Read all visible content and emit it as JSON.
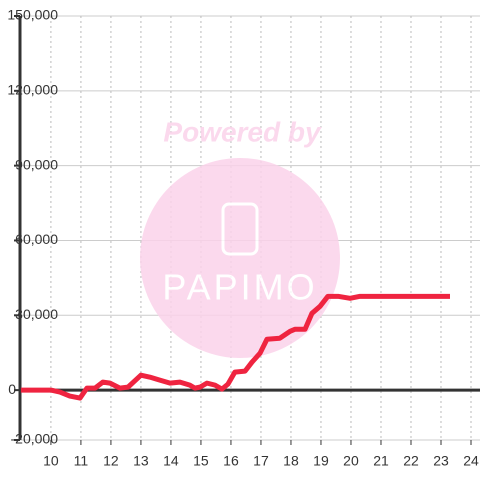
{
  "chart_data": {
    "type": "line",
    "annotations": [
      "Powered by",
      "PAPIMO"
    ],
    "x": [
      9,
      10,
      10.3,
      10.63,
      10.97,
      11.2,
      11.47,
      11.73,
      11.97,
      12.3,
      12.57,
      13,
      13.3,
      13.63,
      13.97,
      14.3,
      14.63,
      14.8,
      14.97,
      15.2,
      15.47,
      15.7,
      15.9,
      16.13,
      16.47,
      16.7,
      16.97,
      17.2,
      17.63,
      17.97,
      18.13,
      18.47,
      18.7,
      18.97,
      19.23,
      19.57,
      19.97,
      20.3,
      23.3
    ],
    "series": [
      {
        "color": "#ef2440",
        "values": [
          0,
          0,
          -800,
          -2400,
          -3200,
          800,
          800,
          3200,
          2800,
          800,
          1200,
          6000,
          5200,
          4000,
          2800,
          3200,
          2000,
          800,
          1200,
          2800,
          2000,
          400,
          2400,
          7200,
          7600,
          11200,
          14800,
          20400,
          20800,
          23600,
          24400,
          24400,
          30800,
          33600,
          37600,
          37600,
          36800,
          37600,
          37600
        ]
      }
    ],
    "xlim": [
      8.97,
      24.3
    ],
    "xticks": [
      10,
      11,
      12,
      13,
      14,
      15,
      16,
      17,
      18,
      19,
      20,
      21,
      22,
      23,
      24
    ],
    "ylim": [
      -20000,
      150000
    ],
    "yticks": [
      {
        "value": -20000,
        "label": "-20,000"
      },
      0,
      {
        "value": 30000,
        "label": "30,000"
      },
      {
        "value": 60000,
        "label": "60,000"
      },
      {
        "value": 90000,
        "label": "90,000"
      },
      {
        "value": 120000,
        "label": "120,000"
      },
      {
        "value": 150000,
        "label": "150,000"
      }
    ],
    "grid": true
  }
}
